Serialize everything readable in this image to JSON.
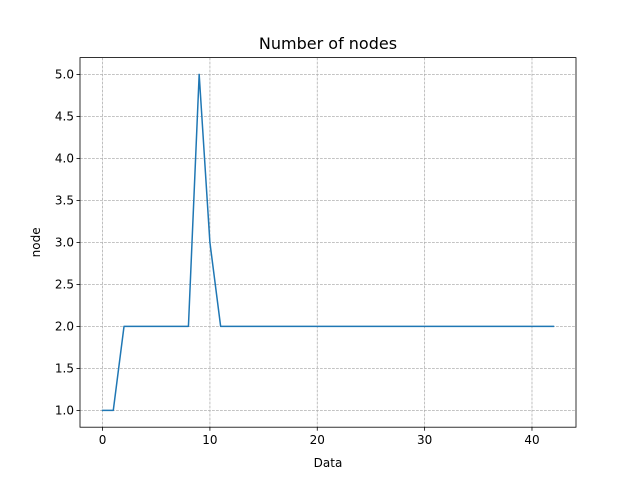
{
  "chart_data": {
    "type": "line",
    "title": "Number of nodes",
    "xlabel": "Data",
    "ylabel": "node",
    "xlim": [
      -2.1,
      44.1
    ],
    "ylim": [
      0.8,
      5.2
    ],
    "xticks": [
      0,
      10,
      20,
      30,
      40
    ],
    "xtick_labels": [
      "0",
      "10",
      "20",
      "30",
      "40"
    ],
    "yticks": [
      1.0,
      1.5,
      2.0,
      2.5,
      3.0,
      3.5,
      4.0,
      4.5,
      5.0
    ],
    "ytick_labels": [
      "1.0",
      "1.5",
      "2.0",
      "2.5",
      "3.0",
      "3.5",
      "4.0",
      "4.5",
      "5.0"
    ],
    "grid": true,
    "series": [
      {
        "color": "#1f77b4",
        "x": [
          0,
          1,
          2,
          3,
          4,
          5,
          6,
          7,
          8,
          9,
          10,
          11,
          12,
          13,
          14,
          15,
          16,
          17,
          18,
          19,
          20,
          21,
          22,
          23,
          24,
          25,
          26,
          27,
          28,
          29,
          30,
          31,
          32,
          33,
          34,
          35,
          36,
          37,
          38,
          39,
          40,
          41,
          42
        ],
        "y": [
          1,
          1,
          2,
          2,
          2,
          2,
          2,
          2,
          2,
          5,
          3,
          2,
          2,
          2,
          2,
          2,
          2,
          2,
          2,
          2,
          2,
          2,
          2,
          2,
          2,
          2,
          2,
          2,
          2,
          2,
          2,
          2,
          2,
          2,
          2,
          2,
          2,
          2,
          2,
          2,
          2,
          2,
          2
        ]
      }
    ]
  }
}
